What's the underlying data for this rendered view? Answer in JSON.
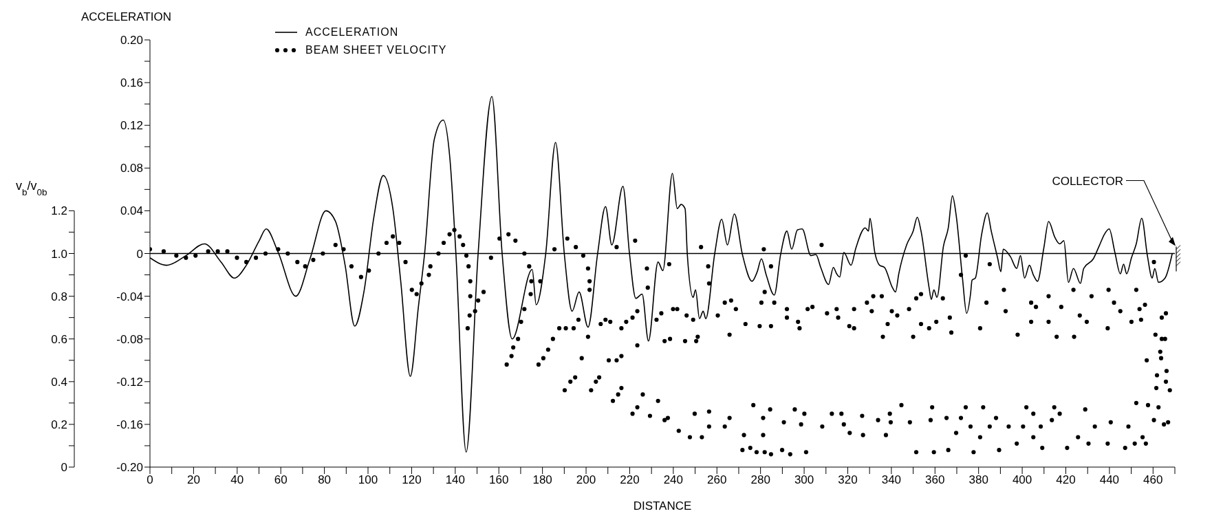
{
  "chart_data": {
    "type": "line",
    "xlabel": "DISTANCE",
    "ylabel": "ACCELERATION",
    "y2label": "v$_{b}$/v$_{0b}$",
    "xlim": [
      0,
      470
    ],
    "xticks": [
      0,
      {
        "value": 10,
        "label": null
      },
      20,
      {
        "value": 30,
        "label": null
      },
      40,
      {
        "value": 50,
        "label": null
      },
      60,
      {
        "value": 70,
        "label": null
      },
      80,
      {
        "value": 90,
        "label": null
      },
      100,
      {
        "value": 110,
        "label": null
      },
      120,
      {
        "value": 130,
        "label": null
      },
      140,
      {
        "value": 150,
        "label": null
      },
      160,
      {
        "value": 170,
        "label": null
      },
      180,
      {
        "value": 190,
        "label": null
      },
      200,
      {
        "value": 210,
        "label": null
      },
      220,
      {
        "value": 230,
        "label": null
      },
      240,
      {
        "value": 250,
        "label": null
      },
      260,
      {
        "value": 270,
        "label": null
      },
      280,
      {
        "value": 290,
        "label": null
      },
      300,
      {
        "value": 310,
        "label": null
      },
      320,
      {
        "value": 330,
        "label": null
      },
      340,
      {
        "value": 350,
        "label": null
      },
      360,
      {
        "value": 370,
        "label": null
      },
      380,
      {
        "value": 390,
        "label": null
      },
      400,
      {
        "value": 410,
        "label": null
      },
      420,
      {
        "value": 430,
        "label": null
      },
      440,
      {
        "value": 450,
        "label": null
      },
      460,
      {
        "value": 470,
        "label": null
      }
    ],
    "ylim": [
      -0.2,
      0.2
    ],
    "yticks": [
      {
        "value": -0.2,
        "label": "-0.20"
      },
      {
        "value": -0.18,
        "label": null
      },
      -0.16,
      {
        "value": -0.14,
        "label": null
      },
      -0.12,
      {
        "value": -0.1,
        "label": null
      },
      -0.08,
      {
        "value": -0.06,
        "label": null
      },
      -0.04,
      {
        "value": -0.02,
        "label": null
      },
      0,
      {
        "value": 0.02,
        "label": null
      },
      0.04,
      {
        "value": 0.06,
        "label": null
      },
      0.08,
      {
        "value": 0.1,
        "label": null
      },
      0.12,
      {
        "value": 0.14,
        "label": null
      },
      0.16,
      {
        "value": 0.18,
        "label": null
      },
      {
        "value": 0.2,
        "label": "0.20"
      }
    ],
    "y2lim": [
      0,
      2
    ],
    "y2ticks": [
      0,
      {
        "value": 0.1,
        "label": null
      },
      0.2,
      {
        "value": 0.3,
        "label": null
      },
      0.4,
      {
        "value": 0.5,
        "label": null
      },
      0.6,
      {
        "value": 0.7,
        "label": null
      },
      0.8,
      {
        "value": 0.9,
        "label": null
      },
      {
        "value": 1,
        "label": "1.0"
      },
      {
        "value": 1.1,
        "label": null
      },
      1.2
    ],
    "legend": "top left",
    "ref_lines": [
      {
        "axis": "y",
        "value": 0,
        "color": "#000000"
      }
    ],
    "annotations": [
      "COLLECTOR"
    ],
    "series": [
      {
        "name": "ACCELERATION",
        "color": "#000000",
        "marker": "none",
        "line_style": "solid",
        "axis": "y",
        "x": [
          0,
          7.7,
          16.5,
          25,
          32.6,
          38.7,
          44.2,
          50.1,
          53.3,
          58.8,
          66.9,
          73.4,
          80.7,
          85.1,
          89.5,
          93.9,
          98.2,
          102.6,
          107,
          111.4,
          115,
          119.4,
          123.1,
          126,
          130.4,
          134.5,
          137.5,
          140.3,
          145,
          150.5,
          156.8,
          161.5,
          166.1,
          175.3,
          177.1,
          181.5,
          186,
          190,
          193.6,
          196.8,
          200.9,
          205.3,
          208.9,
          211.8,
          216.9,
          219.9,
          222.8,
          225.7,
          228.6,
          233,
          235.2,
          239.6,
          241.8,
          243.6,
          245.4,
          246.4,
          249.1,
          250.2,
          252,
          253.7,
          254.9,
          259,
          262.2,
          264.8,
          268,
          271.7,
          276.1,
          278.5,
          280.4,
          282.6,
          286.3,
          289.2,
          292.1,
          294.3,
          296.9,
          299.1,
          303.1,
          305.4,
          307.6,
          311.2,
          313.4,
          314.9,
          316.3,
          318.2,
          321.5,
          323.7,
          328,
          329.5,
          330.2,
          332.4,
          334.6,
          336.8,
          340.5,
          341.9,
          343.4,
          347,
          350,
          351.9,
          353.6,
          357.3,
          358.3,
          359.5,
          360.9,
          363.9,
          366.1,
          368,
          369.7,
          372.6,
          374.5,
          376.3,
          377,
          378.5,
          381.4,
          384,
          385.8,
          388.7,
          390.2,
          391.3,
          394.6,
          397.5,
          399.2,
          401.1,
          403.3,
          405.1,
          407,
          409.9,
          412.1,
          415,
          417.2,
          419.1,
          421.2,
          423.5,
          426.7,
          428.2,
          432.6,
          435.5,
          437.7,
          439.9,
          442.5,
          445,
          446.5,
          447.9,
          450.1,
          452.3,
          454.8,
          457.4,
          459.6,
          460.8,
          462.5,
          465.5,
          468.8
        ],
        "values": [
          -0.004,
          -0.011,
          -0.002,
          0.009,
          -0.008,
          -0.023,
          -0.011,
          0.012,
          0.023,
          0.001,
          -0.04,
          -0.005,
          0.04,
          0.03,
          -0.011,
          -0.068,
          -0.035,
          0.033,
          0.073,
          0.042,
          -0.026,
          -0.115,
          -0.05,
          0.001,
          0.107,
          0.125,
          0.09,
          0,
          -0.186,
          0,
          0.147,
          0,
          -0.08,
          -0.015,
          -0.048,
          0,
          0.104,
          0,
          -0.054,
          -0.036,
          -0.069,
          0,
          0.044,
          0.008,
          0.063,
          0,
          -0.042,
          -0.038,
          -0.082,
          -0.008,
          -0.016,
          0.075,
          0.042,
          0.046,
          0.042,
          0,
          -0.041,
          -0.034,
          -0.061,
          -0.054,
          -0.061,
          0,
          0.032,
          0.008,
          0.037,
          -0.001,
          -0.026,
          -0.017,
          -0.005,
          -0.02,
          -0.039,
          -0.001,
          0.021,
          0.004,
          0.022,
          0.023,
          -0.002,
          -0.001,
          -0.013,
          -0.029,
          -0.013,
          -0.019,
          -0.022,
          0.001,
          -0.011,
          0.005,
          0.024,
          0.021,
          0.033,
          0.001,
          -0.011,
          -0.013,
          -0.032,
          -0.036,
          -0.019,
          0.008,
          0.021,
          0.034,
          0.021,
          -0.032,
          -0.043,
          -0.034,
          -0.041,
          0.007,
          0.024,
          0.054,
          0.036,
          -0.023,
          -0.056,
          -0.038,
          -0.025,
          -0.023,
          0.018,
          0.038,
          0.021,
          -0.004,
          -0.017,
          0.004,
          -0.003,
          -0.014,
          -0.002,
          -0.023,
          -0.011,
          -0.02,
          -0.026,
          0.005,
          0.03,
          0.015,
          0.009,
          0.012,
          -0.027,
          -0.014,
          -0.028,
          -0.014,
          -0.005,
          0.008,
          0.018,
          0.023,
          0.001,
          -0.019,
          -0.01,
          -0.019,
          -0.004,
          0.009,
          0.033,
          -0.002,
          -0.023,
          -0.014,
          -0.027,
          -0.023,
          0
        ]
      },
      {
        "name": "BEAM SHEET VELOCITY",
        "type": "scatter",
        "color": "#000000",
        "marker": "circle",
        "axis": "y2",
        "x": [
          0,
          6.3,
          12.1,
          16.5,
          20.9,
          26.7,
          31.1,
          35.5,
          39.9,
          44.2,
          48.6,
          53,
          58.8,
          63.2,
          67.6,
          71.2,
          74.9,
          79.3,
          85.1,
          88.8,
          92.4,
          96.8,
          100.4,
          104.8,
          108.5,
          111.4,
          114.3,
          117.2,
          120.1,
          122.3,
          124.5,
          128.6,
          127.9,
          132.3,
          134.7,
          137.4,
          139.6,
          142,
          143.6,
          145.1,
          146.1,
          146.9,
          146.9,
          146.6,
          145.7,
          149.1,
          150.5,
          153,
          156.4,
          160.3,
          164.4,
          167.6,
          171.7,
          173.9,
          174.9,
          174.6,
          171.7,
          170.2,
          168.8,
          166.6,
          165.8,
          163.6,
          179,
          185.5,
          191.4,
          195.3,
          198.7,
          200.9,
          201.6,
          201.6,
          200.9,
          198,
          196.5,
          194.3,
          190.7,
          187.7,
          184.8,
          182.6,
          178.2,
          180.4,
          190.2,
          192.8,
          195,
          202.3,
          204.5,
          206,
          206.7,
          208.9,
          211.1,
          210.4,
          214,
          216.2,
          214,
          216.2,
          212.3,
          214.7,
          216.2,
          218.4,
          221.3,
          222.5,
          223.5,
          223.5,
          226,
          227.9,
          228.3,
          221.3,
          223.5,
          229.3,
          233,
          232.3,
          234.5,
          236,
          237.5,
          236,
          238.1,
          238.5,
          239.9,
          241.8,
          245.4,
          246.1,
          249.1,
          242.5,
          247.6,
          249.8,
          250.5,
          251.2,
          252.7,
          256,
          256.4,
          256.4,
          256.4,
          253.1,
          260.4,
          263.6,
          263.6,
          265.8,
          265.8,
          266.5,
          268.7,
          271.7,
          272.4,
          273.1,
          276.7,
          279.6,
          280.4,
          281.2,
          281.9,
          281.2,
          281.5,
          284.8,
          284.8,
          284.4,
          286.3,
          275.3,
          278.2,
          281.9,
          284.8,
          289.9,
          290.7,
          292.1,
          292.1,
          293.6,
          295.7,
          297.2,
          297.9,
          298.6,
          300.1,
          301.6,
          303.8,
          300.9,
          308,
          308.3,
          310.5,
          312.7,
          314.9,
          315.6,
          317.1,
          318.2,
          320.7,
          320.9,
          322.9,
          322.9,
          326.6,
          327,
          328.8,
          331,
          331.7,
          333.9,
          335.6,
          336.1,
          337.5,
          338.3,
          339.3,
          340.2,
          339.7,
          342.7,
          344.6,
          348.1,
          348.5,
          350,
          351.4,
          351.4,
          353.6,
          353.6,
          357.3,
          358,
          358.7,
          359.5,
          360.6,
          363.6,
          365.3,
          366.1,
          366.8,
          367.5,
          369.7,
          371.9,
          371.9,
          374.1,
          374.1,
          376.3,
          377.7,
          380.7,
          380.7,
          382.1,
          383.6,
          385.1,
          385.1,
          388,
          389.4,
          391.6,
          392.4,
          393.8,
          397.5,
          397.9,
          400.4,
          401.9,
          404.1,
          404.1,
          405.1,
          405.1,
          406.3,
          408.5,
          409.2,
          412.1,
          412.1,
          413.6,
          414.7,
          415.8,
          417.2,
          417.9,
          420.6,
          423.5,
          423.8,
          425.6,
          426.4,
          428.9,
          429.6,
          430.4,
          431.8,
          433.3,
          439.2,
          439.2,
          439.6,
          440.6,
          442.1,
          445,
          447.2,
          448.7,
          450.1,
          451.6,
          452.3,
          452.3,
          453.8,
          454.5,
          455.2,
          456.3,
          456.7,
          457.1,
          457.7,
          460.4,
          460.4,
          461.1,
          461.5,
          461.8,
          462.5,
          463.3,
          463.7,
          464,
          464,
          465,
          465.5,
          465.9,
          466.2,
          465.9,
          466.9,
          467.7
        ],
        "values": [
          1.02,
          1.01,
          0.99,
          0.98,
          0.99,
          1.01,
          1.01,
          1.01,
          0.98,
          0.96,
          0.98,
          1.0,
          1.02,
          1.0,
          0.96,
          0.94,
          0.97,
          1.0,
          1.04,
          1.02,
          0.94,
          0.89,
          0.92,
          1.0,
          1.05,
          1.08,
          1.05,
          0.96,
          0.83,
          0.81,
          0.86,
          0.94,
          0.9,
          1.0,
          1.05,
          1.09,
          1.11,
          1.08,
          1.04,
          0.99,
          0.94,
          0.87,
          0.8,
          0.71,
          0.65,
          0.73,
          0.78,
          0.82,
          0.98,
          1.07,
          1.09,
          1.06,
          1.0,
          0.94,
          0.87,
          0.81,
          0.74,
          0.68,
          0.6,
          0.56,
          0.52,
          0.48,
          0.87,
          1.02,
          1.07,
          1.03,
          0.99,
          0.93,
          0.87,
          0.83,
          0.61,
          0.51,
          0.69,
          0.65,
          0.65,
          0.65,
          0.6,
          0.55,
          0.48,
          0.51,
          0.36,
          0.4,
          0.42,
          0.36,
          0.4,
          0.42,
          0.67,
          0.69,
          0.68,
          0.5,
          0.5,
          0.52,
          1.03,
          0.65,
          0.31,
          0.34,
          0.37,
          0.68,
          0.7,
          1.06,
          0.73,
          0.57,
          0.34,
          0.93,
          0.84,
          0.25,
          0.28,
          0.24,
          0.31,
          0.69,
          0.72,
          0.22,
          0.23,
          0.59,
          0.95,
          0.6,
          0.74,
          0.74,
          0.59,
          0.71,
          0.69,
          0.17,
          0.14,
          0.25,
          0.59,
          0.61,
          1.03,
          0.94,
          0.86,
          0.26,
          0.19,
          0.14,
          0.71,
          0.19,
          0.77,
          0.62,
          0.23,
          0.78,
          0.74,
          0.08,
          0.15,
          0.67,
          0.29,
          0.66,
          0.77,
          0.23,
          0.82,
          0.15,
          1.02,
          0.94,
          0.66,
          0.27,
          0.77,
          0.09,
          0.07,
          0.07,
          0.06,
          0.08,
          0.21,
          0.74,
          0.7,
          0.06,
          0.27,
          0.68,
          0.65,
          0.2,
          0.25,
          0.74,
          0.75,
          0.07,
          1.04,
          0.19,
          0.72,
          0.25,
          0.74,
          0.7,
          0.25,
          0.2,
          0.66,
          0.16,
          0.65,
          0.74,
          0.24,
          0.15,
          0.77,
          0.73,
          0.8,
          0.22,
          0.8,
          0.61,
          0.15,
          0.67,
          0.25,
          0.73,
          0.21,
          0.71,
          0.29,
          0.74,
          0.21,
          0.61,
          0.79,
          0.07,
          0.67,
          0.81,
          0.65,
          0.22,
          0.28,
          0.07,
          0.68,
          0.79,
          0.23,
          0.08,
          0.7,
          0.63,
          0.16,
          0.9,
          0.23,
          0.99,
          0.28,
          0.19,
          0.07,
          0.65,
          0.14,
          0.28,
          0.77,
          0.95,
          0.19,
          0.23,
          0.08,
          0.83,
          0.73,
          0.19,
          0.11,
          0.62,
          0.19,
          0.28,
          0.77,
          0.68,
          0.25,
          0.14,
          0.75,
          0.19,
          0.09,
          0.8,
          0.68,
          0.22,
          0.28,
          0.61,
          0.25,
          0.75,
          0.09,
          0.83,
          0.61,
          0.14,
          0.71,
          0.27,
          0.68,
          0.11,
          0.8,
          0.19,
          0.65,
          0.11,
          0.83,
          0.21,
          0.77,
          0.73,
          0.09,
          0.19,
          0.68,
          0.11,
          0.83,
          0.3,
          0.74,
          0.69,
          0.14,
          0.76,
          0.11,
          0.5,
          0.29,
          0.22,
          0.96,
          0.62,
          0.37,
          0.43,
          0.28,
          0.54,
          0.51,
          0.7,
          0.6,
          0.2,
          0.6,
          0.72,
          0.45,
          0.4,
          0.21,
          0.36
        ]
      }
    ]
  }
}
